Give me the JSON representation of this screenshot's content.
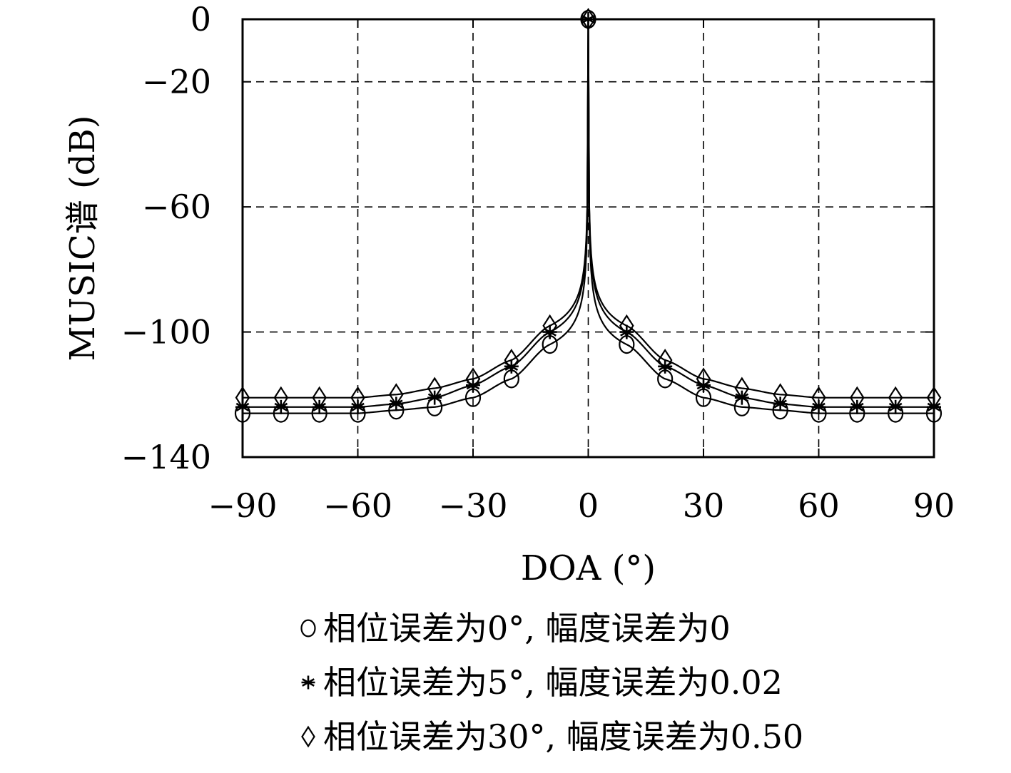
{
  "chart_data": {
    "type": "line",
    "xlabel": "DOA (°)",
    "ylabel": "MUSIC谱 (dB)",
    "xlim": [
      -90,
      90
    ],
    "ylim": [
      -140,
      0
    ],
    "xticks": [
      -90,
      -60,
      -30,
      0,
      30,
      60,
      90
    ],
    "yticks": [
      0,
      -20,
      -60,
      -100,
      -140
    ],
    "xtick_labels": [
      "−90",
      "−60",
      "−30",
      "0",
      "30",
      "60",
      "90"
    ],
    "ytick_labels": [
      "0",
      "−20",
      "−60",
      "−100",
      "−140"
    ],
    "grid": true,
    "legend_position": "bottom",
    "marker_x": [
      -90,
      -80,
      -70,
      -60,
      -50,
      -40,
      -30,
      -20,
      -10,
      0,
      10,
      20,
      30,
      40,
      50,
      60,
      70,
      80,
      90
    ],
    "series": [
      {
        "name": "相位误差为0°, 幅度误差为0",
        "marker": "circle",
        "values": [
          -126,
          -126,
          -126,
          -126,
          -125,
          -124,
          -121,
          -115,
          -104,
          0,
          -104,
          -115,
          -121,
          -124,
          -125,
          -126,
          -126,
          -126,
          -126
        ]
      },
      {
        "name": "相位误差为5°, 幅度误差为0.02",
        "marker": "asterisk",
        "values": [
          -124,
          -124,
          -124,
          -124,
          -123,
          -121,
          -117,
          -111,
          -100,
          0,
          -100,
          -111,
          -117,
          -121,
          -123,
          -124,
          -124,
          -124,
          -124
        ]
      },
      {
        "name": "相位误差为30°, 幅度误差为0.50",
        "marker": "diamond",
        "values": [
          -121,
          -121,
          -121,
          -121,
          -120,
          -118,
          -115,
          -109,
          -98,
          0,
          -98,
          -109,
          -115,
          -118,
          -120,
          -121,
          -121,
          -121,
          -121
        ]
      }
    ]
  },
  "colors": {
    "line": "#000000",
    "grid": "#000000",
    "background": "#ffffff"
  }
}
